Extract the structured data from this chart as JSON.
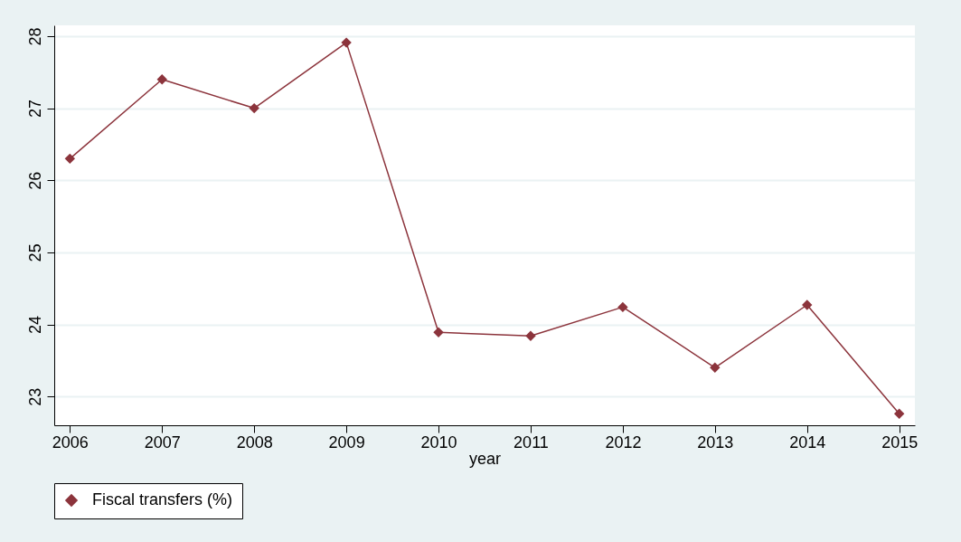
{
  "chart_data": {
    "type": "line",
    "xlabel": "year",
    "x": [
      2006,
      2007,
      2008,
      2009,
      2010,
      2011,
      2012,
      2013,
      2014,
      2015
    ],
    "series": [
      {
        "name": "Fiscal transfers (%)",
        "color": "#8c343c",
        "values": [
          26.3,
          27.4,
          27.0,
          27.91,
          23.89,
          23.84,
          24.24,
          23.4,
          24.27,
          22.76
        ]
      }
    ],
    "xlim": [
      2005.83,
      2015.17
    ],
    "xticks": [
      2006,
      2007,
      2008,
      2009,
      2010,
      2011,
      2012,
      2013,
      2014,
      2015
    ],
    "ylim": [
      22.6,
      28.15
    ],
    "yticks": [
      23,
      24,
      25,
      26,
      27,
      28
    ],
    "grid": "y",
    "legend": "bottom",
    "marker": "diamond",
    "line_style": "solid"
  }
}
